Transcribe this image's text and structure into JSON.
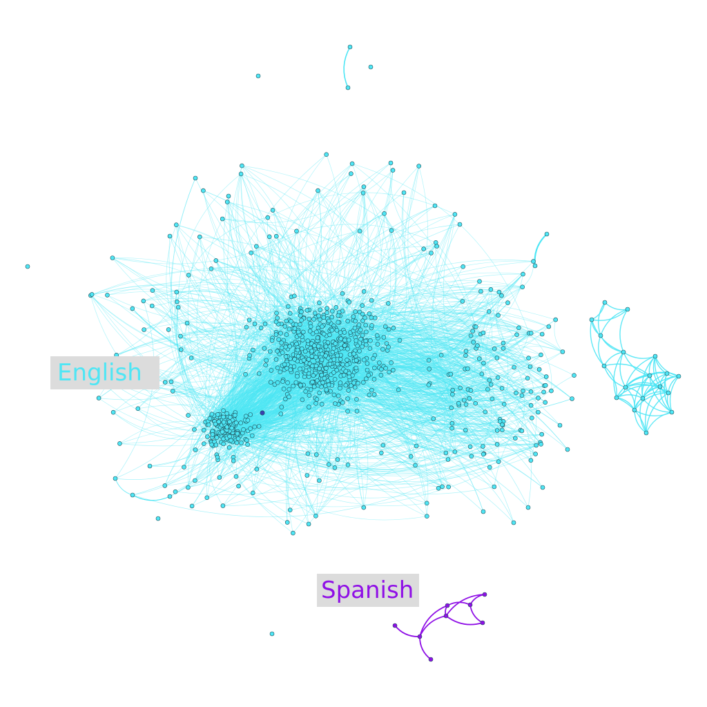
{
  "communities": [
    {
      "id": "english",
      "label": "English",
      "color": "#4ee6f5",
      "edge_color": "#4ee6f5"
    },
    {
      "id": "spanish",
      "label": "Spanish",
      "color": "#8f0fe6",
      "edge_color": "#8f0fe6"
    }
  ],
  "label_background": "#dcdcdc",
  "node_stroke": "#1f4e57",
  "hub_node_color": "#3a3fb0"
}
